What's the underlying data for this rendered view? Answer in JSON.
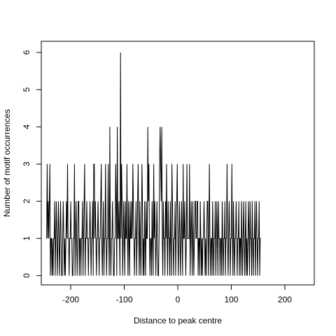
{
  "chart_data": {
    "type": "line",
    "xlabel": "Distance to peak centre",
    "ylabel": "Number of motif occurrences",
    "xlim": [
      -255,
      255
    ],
    "ylim": [
      -0.25,
      6.3
    ],
    "x_ticks": [
      -200,
      -100,
      0,
      100,
      200
    ],
    "x_tick_labels": [
      "-200",
      "-100",
      "0",
      "100",
      "200"
    ],
    "y_ticks": [
      0,
      1,
      2,
      3,
      4,
      5,
      6
    ],
    "y_tick_labels": [
      "0",
      "1",
      "2",
      "3",
      "4",
      "5",
      "6"
    ],
    "grid": false,
    "line_color": "#000000",
    "x_start": -245,
    "x_step": 1,
    "y": [
      1,
      3,
      1,
      2,
      1,
      2,
      3,
      0,
      1,
      1,
      0,
      1,
      0,
      1,
      1,
      2,
      0,
      1,
      2,
      1,
      0,
      1,
      2,
      1,
      0,
      1,
      2,
      1,
      0,
      0,
      1,
      2,
      1,
      0,
      1,
      0,
      1,
      2,
      1,
      3,
      1,
      1,
      0,
      1,
      1,
      2,
      1,
      1,
      0,
      0,
      1,
      1,
      3,
      0,
      1,
      2,
      1,
      0,
      1,
      2,
      2,
      0,
      1,
      1,
      0,
      1,
      1,
      2,
      0,
      1,
      2,
      3,
      0,
      1,
      1,
      2,
      1,
      1,
      0,
      1,
      1,
      2,
      1,
      0,
      1,
      1,
      2,
      0,
      3,
      3,
      1,
      2,
      1,
      0,
      1,
      1,
      2,
      1,
      0,
      1,
      1,
      2,
      3,
      1,
      0,
      1,
      2,
      0,
      1,
      1,
      3,
      1,
      0,
      1,
      1,
      3,
      1,
      0,
      4,
      1,
      0,
      1,
      1,
      2,
      1,
      0,
      0,
      1,
      1,
      3,
      2,
      0,
      4,
      1,
      1,
      2,
      1,
      0,
      6,
      1,
      3,
      2,
      0,
      1,
      2,
      1,
      0,
      2,
      1,
      1,
      3,
      1,
      0,
      2,
      1,
      0,
      2,
      1,
      1,
      2,
      1,
      3,
      2,
      1,
      0,
      1,
      1,
      2,
      0,
      1,
      2,
      3,
      1,
      0,
      2,
      1,
      0,
      1,
      3,
      2,
      0,
      1,
      0,
      2,
      1,
      0,
      2,
      1,
      1,
      4,
      2,
      3,
      1,
      0,
      1,
      1,
      0,
      2,
      1,
      0,
      3,
      1,
      2,
      1,
      0,
      1,
      2,
      1,
      0,
      0,
      1,
      3,
      4,
      3,
      2,
      4,
      1,
      0,
      2,
      1,
      1,
      0,
      2,
      1,
      3,
      1,
      0,
      2,
      1,
      1,
      0,
      2,
      1,
      0,
      3,
      2,
      1,
      0,
      1,
      1,
      2,
      0,
      1,
      2,
      3,
      1,
      0,
      1,
      2,
      1,
      0,
      1,
      2,
      1,
      0,
      3,
      1,
      1,
      2,
      1,
      0,
      1,
      3,
      1,
      1,
      1,
      1,
      3,
      0,
      1,
      2,
      1,
      0,
      2,
      1,
      0,
      1,
      2,
      2,
      1,
      1,
      2,
      2,
      0,
      1,
      1,
      0,
      2,
      1,
      0,
      1,
      0,
      1,
      1,
      2,
      1,
      0,
      1,
      0,
      1,
      2,
      2,
      0,
      1,
      3,
      1,
      0,
      1,
      1,
      0,
      2,
      1,
      0,
      1,
      1,
      2,
      0,
      1,
      2,
      1,
      0,
      2,
      1,
      1,
      0,
      1,
      1,
      0,
      2,
      1,
      0,
      1,
      1,
      2,
      0,
      1,
      1,
      3,
      1,
      0,
      1,
      2,
      1,
      0,
      1,
      1,
      3,
      1,
      0,
      2,
      1,
      0,
      1,
      1,
      2,
      1,
      0,
      1,
      1,
      2,
      0,
      1,
      1,
      0,
      2,
      1,
      0,
      1,
      2,
      1,
      0,
      1,
      2,
      0,
      1,
      0,
      1,
      2,
      1,
      0,
      2,
      1,
      1,
      0,
      2,
      1,
      0,
      1,
      1,
      2,
      0,
      1,
      2,
      1,
      0,
      1,
      1,
      2,
      0,
      1,
      1
    ]
  }
}
